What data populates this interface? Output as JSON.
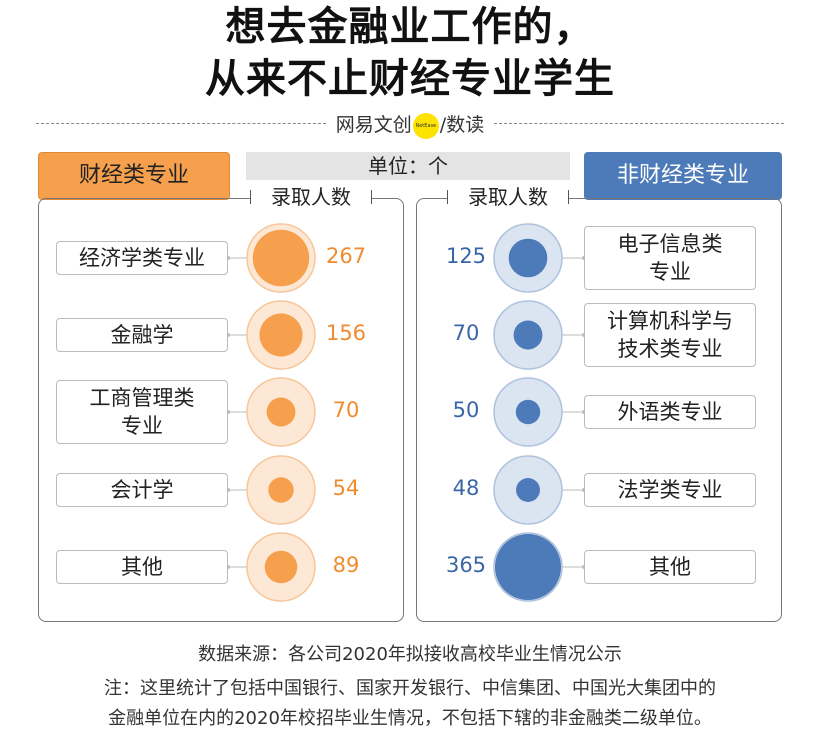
{
  "title_line1": "想去金融业工作的，",
  "title_line2": "从来不止财经专业学生",
  "brand": {
    "left_text": "网易文创",
    "badge": "NetEase",
    "right_text": "/数读"
  },
  "unit_label": "单位：个",
  "left_header": "财经类专业",
  "right_header": "非财经类专业",
  "column_header_left": "录取人数",
  "column_header_right": "录取人数",
  "source": "数据来源：各公司2020年拟接收高校毕业生情况公示",
  "note_line1": "注：这里统计了包括中国银行、国家开发银行、中信集团、中国光大集团中的",
  "note_line2": "金融单位在内的2020年校招毕业生情况，不包括下辖的非金融类二级单位。",
  "colors": {
    "finance": "#f6a04d",
    "non_finance": "#4d7ab8"
  },
  "chart_data": [
    {
      "type": "bubble",
      "series_name": "财经类专业",
      "categories": [
        "经济学类专业",
        "金融学",
        "工商管理类专业",
        "会计学",
        "其他"
      ],
      "category_display": [
        "经济学类专业",
        "金融学",
        "工商管理类\n专业",
        "会计学",
        "其他"
      ],
      "values": [
        267,
        156,
        70,
        54,
        89
      ],
      "color": "#f6a04d"
    },
    {
      "type": "bubble",
      "series_name": "非财经类专业",
      "categories": [
        "电子信息类专业",
        "计算机科学与技术类专业",
        "外语类专业",
        "法学类专业",
        "其他"
      ],
      "category_display": [
        "电子信息类\n专业",
        "计算机科学与\n技术类专业",
        "外语类专业",
        "法学类专业",
        "其他"
      ],
      "values": [
        125,
        70,
        50,
        48,
        365
      ],
      "color": "#4d7ab8"
    }
  ]
}
